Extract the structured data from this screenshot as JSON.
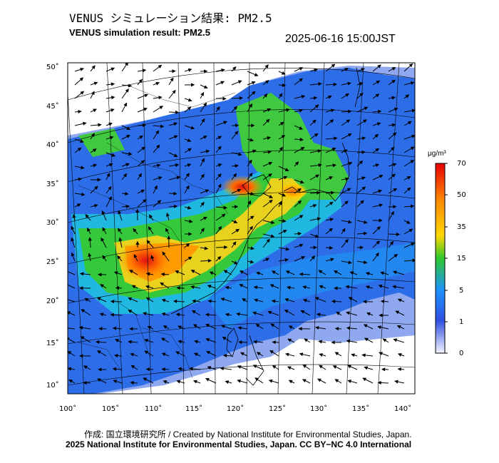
{
  "header": {
    "title_jp": "VENUS シミュレーション結果: PM2.5",
    "title_en": "VENUS simulation result: PM2.5",
    "timestamp": "2025-06-16 15:00JST"
  },
  "map": {
    "lat_labels": [
      "50˚",
      "45˚",
      "40˚",
      "35˚",
      "30˚",
      "25˚",
      "20˚",
      "15˚",
      "10˚"
    ],
    "lon_labels": [
      "100˚",
      "105˚",
      "110˚",
      "115˚",
      "120˚",
      "125˚",
      "130˚",
      "135˚",
      "140˚"
    ],
    "colors": {
      "land_border": "#000000",
      "grid": "#000000",
      "arrow": "#000000"
    }
  },
  "colorbar": {
    "unit": "μg/m³",
    "labels": [
      "70",
      "50",
      "35",
      "15",
      "5",
      "1",
      "0"
    ],
    "stops": [
      "#e80000",
      "#ff8c00",
      "#ffd700",
      "#2ec82e",
      "#1e90ff",
      "#3050e0",
      "#f4f4ff"
    ]
  },
  "footer": {
    "credit_line": "作成: 国立環境研究所 / Created by National Institute for Environmental Studies, Japan.",
    "license_line": "2025 National Institute for Environmental Studies, Japan. CC BY−NC 4.0 International"
  }
}
